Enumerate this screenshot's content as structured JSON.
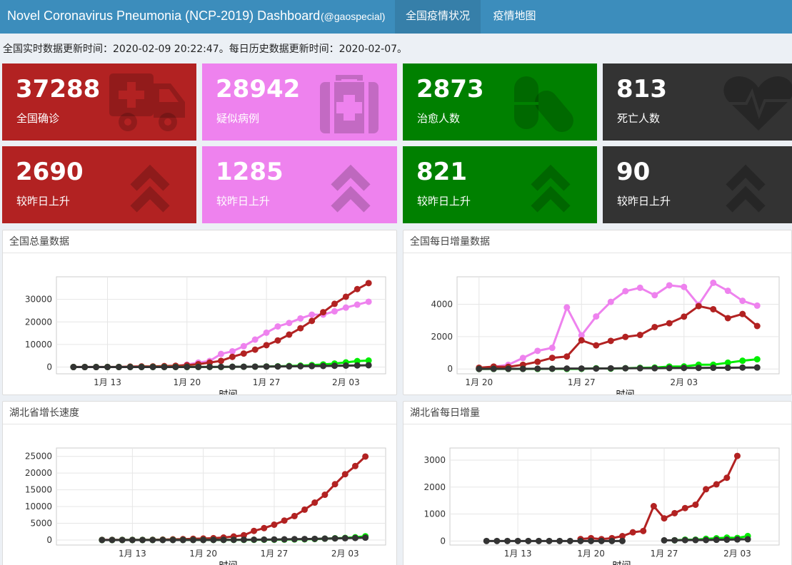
{
  "header": {
    "title": "Novel Coronavirus Pneumonia (NCP-2019) Dashboard",
    "subtitle": "(@gaospecial)",
    "tabs": [
      {
        "label": "全国疫情状况",
        "active": true
      },
      {
        "label": "疫情地图",
        "active": false
      }
    ]
  },
  "update_text": "全国实时数据更新时间：2020-02-09 20:22:47。每日历史数据更新时间：2020-02-07。",
  "colors": {
    "confirmed": "#b22222",
    "suspected": "#ee82ee",
    "cured": "#00ee00",
    "dead": "#333333"
  },
  "boxes": [
    {
      "value": "37288",
      "label": "全国确诊",
      "color": "#b22222",
      "icon": "ambulance-icon"
    },
    {
      "value": "28942",
      "label": "疑似病例",
      "color": "#ee82ee",
      "icon": "medkit-icon"
    },
    {
      "value": "2873",
      "label": "治愈人数",
      "color": "#008000",
      "icon": "pills-icon"
    },
    {
      "value": "813",
      "label": "死亡人数",
      "color": "#333333",
      "icon": "heartbeat-icon"
    },
    {
      "value": "2690",
      "label": "较昨日上升",
      "color": "#b22222",
      "icon": "double-up-arrow-icon"
    },
    {
      "value": "1285",
      "label": "较昨日上升",
      "color": "#ee82ee",
      "icon": "double-up-arrow-icon"
    },
    {
      "value": "821",
      "label": "较昨日上升",
      "color": "#008000",
      "icon": "double-up-arrow-icon"
    },
    {
      "value": "90",
      "label": "较昨日上升",
      "color": "#333333",
      "icon": "double-up-arrow-icon"
    }
  ],
  "panels": [
    {
      "title": "全国总量数据"
    },
    {
      "title": "全国每日增量数据"
    },
    {
      "title": "湖北省增长速度"
    },
    {
      "title": "湖北省每日增量"
    }
  ],
  "chart_data": [
    {
      "type": "line",
      "title": "全国总量数据",
      "xlabel": "时间",
      "x_start": "2020-01-10",
      "x_ticks": [
        "1月 13",
        "1月 20",
        "1月 27",
        "2月 03"
      ],
      "ylim": [
        -3000,
        40000
      ],
      "y_ticks": [
        "0",
        "10000",
        "20000",
        "30000"
      ],
      "grid": true,
      "series": [
        {
          "key": "confirmed",
          "values": [
            41,
            41,
            41,
            45,
            62,
            198,
            275,
            291,
            440,
            571,
            830,
            1287,
            1975,
            2744,
            4515,
            5974,
            7711,
            9692,
            11791,
            14380,
            17205,
            20438,
            24324,
            28018,
            31161,
            34546,
            37198
          ]
        },
        {
          "key": "suspected",
          "values": [
            0,
            0,
            0,
            0,
            0,
            0,
            0,
            54,
            37,
            393,
            1072,
            1965,
            2684,
            5794,
            6973,
            9239,
            12167,
            15238,
            17988,
            19544,
            21558,
            23214,
            23260,
            24702,
            26359,
            27657,
            28942
          ]
        },
        {
          "key": "cured",
          "values": [
            2,
            2,
            7,
            7,
            7,
            12,
            18,
            25,
            28,
            34,
            38,
            49,
            51,
            60,
            103,
            124,
            171,
            243,
            328,
            475,
            632,
            892,
            1153,
            1540,
            2050,
            2649,
            2873
          ]
        },
        {
          "key": "dead",
          "values": [
            1,
            1,
            1,
            2,
            2,
            2,
            3,
            6,
            9,
            17,
            25,
            41,
            56,
            80,
            106,
            132,
            170,
            213,
            259,
            304,
            361,
            425,
            490,
            563,
            636,
            722,
            813
          ]
        }
      ]
    },
    {
      "type": "line",
      "title": "全国每日增量数据",
      "xlabel": "时间",
      "x_start": "2020-01-20",
      "x_ticks": [
        "1月 20",
        "1月 27",
        "2月 03"
      ],
      "ylim": [
        -300,
        5700
      ],
      "y_ticks": [
        "0",
        "2000",
        "4000"
      ],
      "grid": true,
      "series": [
        {
          "key": "confirmed",
          "values": [
            77,
            149,
            131,
            259,
            444,
            688,
            769,
            1771,
            1459,
            1737,
            1982,
            2102,
            2590,
            2829,
            3235,
            3887,
            3694,
            3143,
            3399,
            2656
          ]
        },
        {
          "key": "suspected",
          "values": [
            27,
            130,
            257,
            680,
            1118,
            1309,
            3806,
            2077,
            3248,
            4148,
            4812,
            5019,
            4562,
            5173,
            5072,
            3971,
            5328,
            4833,
            4214,
            3916
          ]
        },
        {
          "key": "cured",
          "values": [
            0,
            3,
            5,
            6,
            3,
            11,
            2,
            9,
            43,
            21,
            47,
            72,
            85,
            147,
            157,
            262,
            261,
            387,
            510,
            600
          ]
        },
        {
          "key": "dead",
          "values": [
            3,
            8,
            8,
            8,
            16,
            15,
            24,
            26,
            26,
            38,
            43,
            46,
            45,
            57,
            64,
            65,
            73,
            73,
            86,
            89
          ]
        }
      ]
    },
    {
      "type": "line",
      "title": "湖北省增长速度",
      "xlabel": "时间",
      "x_start": "2020-01-10",
      "x_ticks": [
        "1月 13",
        "1月 20",
        "1月 27",
        "2月 03"
      ],
      "ylim": [
        -1500,
        27500
      ],
      "y_ticks": [
        "0",
        "5000",
        "10000",
        "15000",
        "20000",
        "25000"
      ],
      "grid": true,
      "series": [
        {
          "key": "confirmed",
          "values": [
            41,
            41,
            41,
            41,
            45,
            62,
            121,
            198,
            270,
            375,
            444,
            549,
            729,
            1052,
            1423,
            2714,
            3554,
            4586,
            5806,
            7153,
            9074,
            11177,
            13522,
            16678,
            19665,
            22112,
            24953
          ]
        },
        {
          "key": "cured",
          "values": [
            2,
            2,
            7,
            7,
            7,
            12,
            19,
            25,
            25,
            28,
            28,
            31,
            32,
            42,
            44,
            47,
            80,
            90,
            116,
            166,
            215,
            295,
            396,
            520,
            633,
            817,
            1115
          ]
        },
        {
          "key": "dead",
          "values": [
            1,
            1,
            1,
            2,
            2,
            2,
            3,
            3,
            6,
            9,
            17,
            24,
            39,
            52,
            76,
            100,
            125,
            162,
            204,
            249,
            294,
            350,
            414,
            479,
            549,
            618,
            699
          ]
        }
      ]
    },
    {
      "type": "line",
      "title": "湖北省每日增量",
      "xlabel": "时间",
      "x_start": "2020-01-10",
      "x_ticks": [
        "1月 13",
        "1月 20",
        "1月 27",
        "2月 03"
      ],
      "ylim": [
        -150,
        3450
      ],
      "y_ticks": [
        "0",
        "1000",
        "2000",
        "3000"
      ],
      "grid": true,
      "series": [
        {
          "key": "confirmed",
          "values": [
            null,
            null,
            null,
            null,
            null,
            null,
            null,
            null,
            null,
            72,
            105,
            69,
            105,
            180,
            323,
            371,
            1291,
            840,
            1032,
            1220,
            1347,
            1921,
            2103,
            2345,
            3156,
            null,
            null
          ]
        },
        {
          "key": "cured",
          "values": [
            null,
            null,
            null,
            null,
            null,
            null,
            null,
            null,
            null,
            null,
            null,
            null,
            null,
            null,
            null,
            null,
            null,
            null,
            26,
            50,
            49,
            80,
            101,
            124,
            113,
            184,
            null
          ]
        },
        {
          "key": "dead",
          "values": [
            0,
            0,
            0,
            0,
            0,
            0,
            0,
            0,
            0,
            0,
            0,
            0,
            0,
            0,
            null,
            null,
            null,
            24,
            26,
            32,
            35,
            36,
            45,
            49,
            57,
            64,
            null
          ]
        }
      ]
    }
  ]
}
